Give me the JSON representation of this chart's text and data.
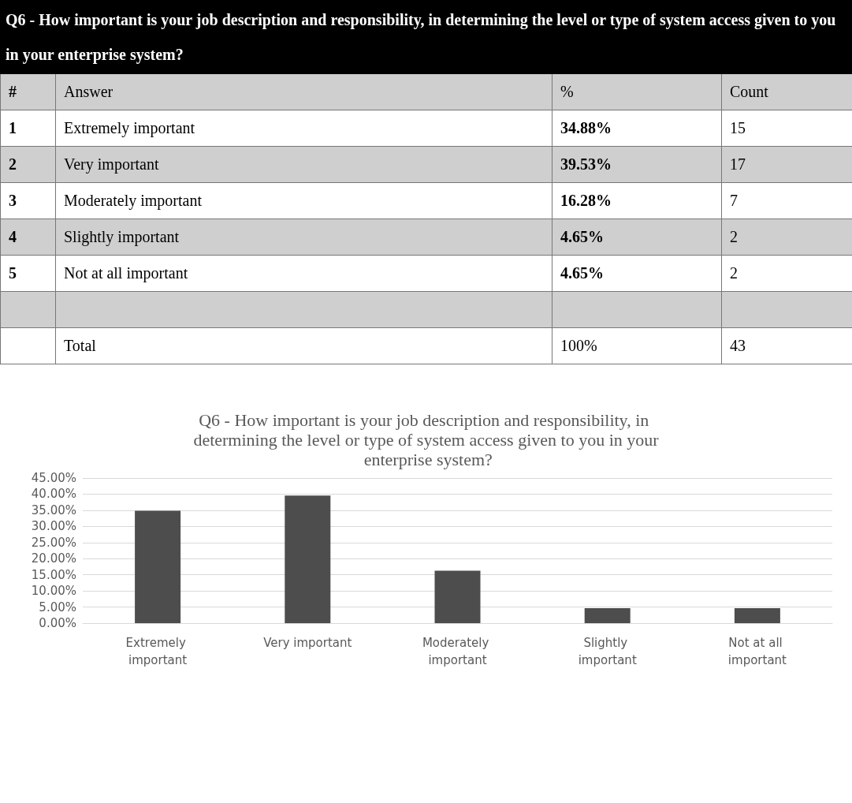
{
  "chart_data": {
    "type": "bar",
    "subtitle": "Q6 - How important is your job description and responsibility, in determining the level or type of system access given to you in your enterprise system?",
    "title": "Q6 - How important is your job description and responsibility, in determining the level or type of system access given to you in your enterprise system?",
    "categories": [
      "Extremely important",
      "Very important",
      "Moderately important",
      "Slightly important",
      "Not at all important"
    ],
    "values": [
      34.88,
      39.53,
      16.28,
      4.65,
      4.65
    ],
    "color": "#4d4d4d",
    "ylim": [
      0,
      45
    ],
    "yticks": [
      {
        "value": 0,
        "label": "0.00%"
      },
      {
        "value": 5,
        "label": "5.00%"
      },
      {
        "value": 10,
        "label": "10.00%"
      },
      {
        "value": 15,
        "label": "15.00%"
      },
      {
        "value": 20,
        "label": "20.00%"
      },
      {
        "value": 25,
        "label": "25.00%"
      },
      {
        "value": 30,
        "label": "30.00%"
      },
      {
        "value": 35,
        "label": "35.00%"
      },
      {
        "value": 40,
        "label": "40.00%"
      },
      {
        "value": 45,
        "label": "45.00%"
      }
    ],
    "annotations": [
      "#",
      "Answer",
      "%",
      "Count",
      "1",
      "34.88%",
      "15",
      "2",
      "39.53%",
      "17",
      "3",
      "16.28%",
      "7",
      "4",
      "4.65%",
      "2",
      "5",
      "4.65%",
      "2",
      "Total",
      "100%",
      "43"
    ],
    "grid": "y"
  }
}
